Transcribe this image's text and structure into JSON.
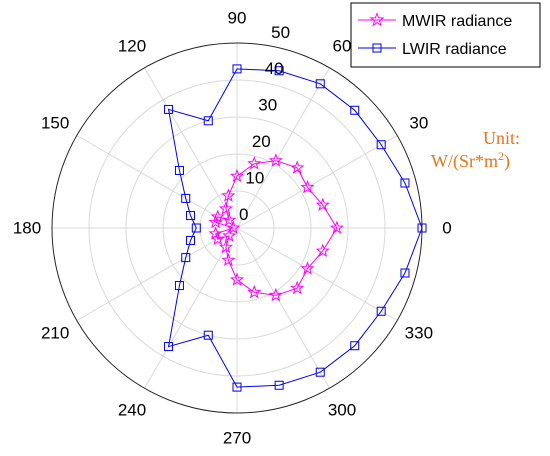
{
  "chart_data": {
    "type": "polar-line",
    "angle_unit": "degrees",
    "theta_ticks": [
      "0",
      "30",
      "60",
      "90",
      "120",
      "150",
      "180",
      "210",
      "240",
      "270",
      "300",
      "330"
    ],
    "r_ticks": [
      "0",
      "10",
      "20",
      "30",
      "40",
      "50"
    ],
    "rlim": [
      0,
      50
    ],
    "grid": true,
    "legend_position": "top-right",
    "annotation": {
      "line1": "Unit:",
      "line2_prefix": "W/(Sr*m",
      "superscript": "2",
      "line2_suffix": ")",
      "color": "#e8731a"
    },
    "series": [
      {
        "name": "MWIR radiance",
        "color": "#ff00ff",
        "marker": "star",
        "theta": [
          0,
          15,
          30,
          45,
          60,
          75,
          90,
          105,
          120,
          135,
          150,
          165,
          180,
          195,
          210,
          225,
          240,
          255,
          270,
          285,
          300,
          315,
          330,
          345
        ],
        "r": [
          27,
          24,
          22,
          23,
          21,
          18,
          14,
          9,
          6,
          3,
          6,
          6,
          1,
          6,
          6,
          3,
          6,
          9,
          14,
          18,
          21,
          23,
          22,
          24
        ]
      },
      {
        "name": "LWIR radiance",
        "color": "#0000ee",
        "marker": "square",
        "theta": [
          0,
          15,
          30,
          45,
          60,
          75,
          90,
          105,
          120,
          135,
          150,
          165,
          180,
          195,
          210,
          225,
          240,
          255,
          270,
          285,
          300,
          315,
          330,
          345
        ],
        "r": [
          50,
          47,
          45,
          45,
          45,
          44,
          43,
          30,
          37,
          22,
          16,
          13,
          11,
          13,
          16,
          22,
          37,
          30,
          43,
          44,
          45,
          45,
          45,
          47
        ]
      }
    ]
  }
}
